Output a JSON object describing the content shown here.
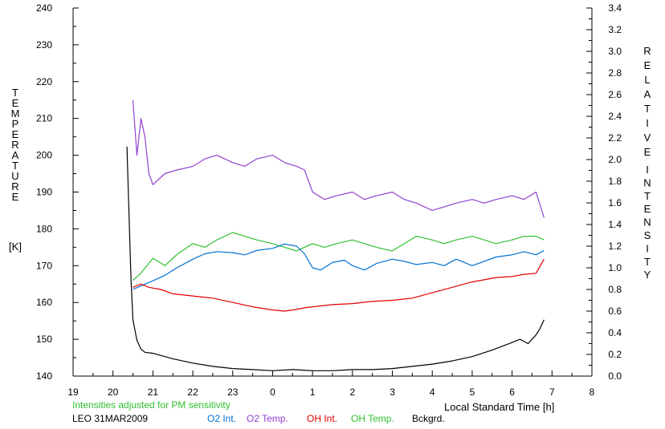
{
  "chart_data": {
    "type": "line",
    "note_text": "Intensities adjusted for PM sensitivity",
    "station_text": "LEO 31MAR2009",
    "xlabel": "Local Standard Time [h]",
    "ylabel_left_letters": [
      "T",
      "E",
      "M",
      "P",
      "E",
      "R",
      "A",
      "T",
      "U",
      "R",
      "E",
      "[K]"
    ],
    "ylabel_right_letters": [
      "R",
      "E",
      "L",
      "A",
      "T",
      "I",
      "V",
      "E",
      "I",
      "N",
      "T",
      "E",
      "N",
      "S",
      "I",
      "T",
      "Y"
    ],
    "x_axis": {
      "range_hours": [
        19,
        32
      ],
      "tick_labels": [
        "19",
        "20",
        "21",
        "22",
        "23",
        "0",
        "1",
        "2",
        "3",
        "4",
        "5",
        "6",
        "7",
        "8"
      ]
    },
    "y_left": {
      "range": [
        140,
        240
      ],
      "tick_labels": [
        "140",
        "150",
        "160",
        "170",
        "180",
        "190",
        "200",
        "210",
        "220",
        "230",
        "240"
      ]
    },
    "y_right": {
      "range": [
        0.0,
        3.4
      ],
      "tick_labels": [
        "0.0",
        "0.2",
        "0.4",
        "0.6",
        "0.8",
        "1.0",
        "1.2",
        "1.4",
        "1.6",
        "1.8",
        "2.0",
        "2.2",
        "2.4",
        "2.6",
        "2.8",
        "3.0",
        "3.2",
        "3.4"
      ]
    },
    "grid": false,
    "series": [
      {
        "name": "O2 Int.",
        "axis": "right",
        "color": "#0070d0",
        "x": [
          20.5,
          20.8,
          21.0,
          21.3,
          21.6,
          22.0,
          22.3,
          22.6,
          23.0,
          23.3,
          23.6,
          24.0,
          24.3,
          24.6,
          24.8,
          25.0,
          25.2,
          25.5,
          25.8,
          26.0,
          26.3,
          26.6,
          27.0,
          27.3,
          27.6,
          28.0,
          28.3,
          28.6,
          29.0,
          29.3,
          29.6,
          30.0,
          30.3,
          30.6,
          30.8
        ],
        "y": [
          0.8,
          0.85,
          0.88,
          0.93,
          1.0,
          1.08,
          1.13,
          1.15,
          1.14,
          1.12,
          1.16,
          1.18,
          1.22,
          1.2,
          1.13,
          1.0,
          0.98,
          1.05,
          1.07,
          1.02,
          0.98,
          1.04,
          1.08,
          1.06,
          1.03,
          1.05,
          1.02,
          1.08,
          1.02,
          1.06,
          1.1,
          1.12,
          1.15,
          1.12,
          1.16
        ]
      },
      {
        "name": "O2 Temp.",
        "axis": "left",
        "color": "#9040d0",
        "x": [
          20.5,
          20.6,
          20.7,
          20.8,
          20.9,
          21.0,
          21.3,
          21.6,
          22.0,
          22.3,
          22.6,
          23.0,
          23.3,
          23.6,
          24.0,
          24.3,
          24.6,
          24.8,
          25.0,
          25.3,
          25.6,
          26.0,
          26.3,
          26.6,
          27.0,
          27.3,
          27.6,
          28.0,
          28.3,
          28.6,
          29.0,
          29.3,
          29.6,
          30.0,
          30.3,
          30.6,
          30.8
        ],
        "y": [
          215,
          200,
          210,
          205,
          195,
          192,
          195,
          196,
          197,
          199,
          200,
          198,
          197,
          199,
          200,
          198,
          197,
          196,
          190,
          188,
          189,
          190,
          188,
          189,
          190,
          188,
          187,
          185,
          186,
          187,
          188,
          187,
          188,
          189,
          188,
          190,
          183
        ]
      },
      {
        "name": "OH Int.",
        "axis": "right",
        "color": "#e00000",
        "x": [
          20.5,
          20.7,
          20.9,
          21.2,
          21.5,
          22.0,
          22.5,
          23.0,
          23.5,
          24.0,
          24.3,
          24.5,
          24.8,
          25.0,
          25.5,
          26.0,
          26.5,
          27.0,
          27.5,
          28.0,
          28.5,
          29.0,
          29.3,
          29.6,
          30.0,
          30.3,
          30.6,
          30.8
        ],
        "y": [
          0.82,
          0.85,
          0.82,
          0.8,
          0.76,
          0.74,
          0.72,
          0.68,
          0.64,
          0.61,
          0.6,
          0.61,
          0.63,
          0.64,
          0.66,
          0.67,
          0.69,
          0.7,
          0.72,
          0.77,
          0.82,
          0.87,
          0.89,
          0.91,
          0.92,
          0.94,
          0.95,
          1.08
        ]
      },
      {
        "name": "OH Temp.",
        "axis": "left",
        "color": "#30c030",
        "x": [
          20.5,
          20.7,
          21.0,
          21.3,
          21.6,
          22.0,
          22.3,
          22.6,
          23.0,
          23.3,
          23.6,
          24.0,
          24.3,
          24.6,
          25.0,
          25.3,
          25.6,
          26.0,
          26.3,
          26.6,
          27.0,
          27.3,
          27.6,
          28.0,
          28.3,
          28.6,
          29.0,
          29.3,
          29.6,
          30.0,
          30.3,
          30.6,
          30.8
        ],
        "y": [
          166,
          168,
          172,
          170,
          173,
          176,
          175,
          177,
          179,
          178,
          177,
          176,
          175,
          174,
          176,
          175,
          176,
          177,
          176,
          175,
          174,
          176,
          178,
          177,
          176,
          177,
          178,
          177,
          176,
          177,
          178,
          178,
          177
        ]
      },
      {
        "name": "Bckgrd.",
        "axis": "right",
        "color": "#000000",
        "x": [
          20.35,
          20.4,
          20.45,
          20.5,
          20.6,
          20.7,
          20.8,
          21.0,
          21.5,
          22.0,
          22.5,
          23.0,
          23.5,
          24.0,
          24.5,
          25.0,
          25.5,
          26.0,
          26.5,
          27.0,
          27.5,
          28.0,
          28.5,
          29.0,
          29.5,
          30.0,
          30.2,
          30.4,
          30.6,
          30.7,
          30.8
        ],
        "y": [
          2.12,
          1.5,
          0.9,
          0.52,
          0.33,
          0.25,
          0.22,
          0.21,
          0.16,
          0.12,
          0.09,
          0.07,
          0.06,
          0.05,
          0.06,
          0.05,
          0.05,
          0.06,
          0.06,
          0.07,
          0.09,
          0.11,
          0.14,
          0.18,
          0.24,
          0.31,
          0.34,
          0.3,
          0.38,
          0.44,
          0.52
        ]
      }
    ]
  }
}
